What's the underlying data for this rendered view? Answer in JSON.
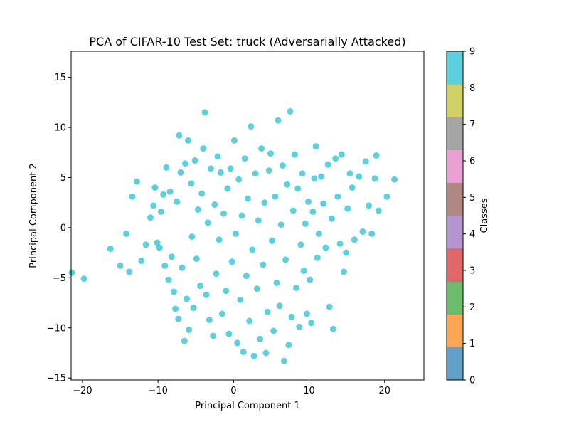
{
  "chart_data": {
    "type": "scatter",
    "title": "PCA of CIFAR-10 Test Set: truck (Adversarially Attacked)",
    "xlabel": "Principal Component 1",
    "ylabel": "Principal Component 2",
    "xlim": [
      -21.5,
      25.2
    ],
    "ylim": [
      -15.2,
      17.6
    ],
    "xticks": [
      -20,
      -10,
      0,
      10,
      20
    ],
    "yticks": [
      -15,
      -10,
      -5,
      0,
      5,
      10,
      15
    ],
    "grid": false,
    "point_color": "#17becf",
    "point_alpha": 0.7,
    "colorbar": {
      "label": "Classes",
      "ticks": [
        "0",
        "1",
        "2",
        "3",
        "4",
        "5",
        "6",
        "7",
        "8",
        "9"
      ],
      "colors": [
        "#1f77b4",
        "#ff7f0e",
        "#2ca02c",
        "#d62728",
        "#9467bd",
        "#8c564b",
        "#e377c2",
        "#7f7f7f",
        "#bcbd22",
        "#17becf"
      ],
      "alpha": 0.7
    },
    "points": [
      [
        -21.4,
        -4.5
      ],
      [
        -19.8,
        -5.1
      ],
      [
        -16.3,
        -2.1
      ],
      [
        -15.0,
        -3.8
      ],
      [
        -14.2,
        -0.6
      ],
      [
        -13.8,
        -4.4
      ],
      [
        -13.4,
        3.1
      ],
      [
        -12.8,
        4.6
      ],
      [
        -12.2,
        -3.3
      ],
      [
        -11.6,
        -1.7
      ],
      [
        -11.0,
        1.0
      ],
      [
        -10.6,
        2.2
      ],
      [
        -10.4,
        4.0
      ],
      [
        -10.1,
        -1.5
      ],
      [
        -9.8,
        -2.0
      ],
      [
        -9.6,
        1.6
      ],
      [
        -9.3,
        3.3
      ],
      [
        -9.1,
        -3.8
      ],
      [
        -8.9,
        6.0
      ],
      [
        -8.6,
        -5.2
      ],
      [
        -8.4,
        3.6
      ],
      [
        -8.2,
        -2.9
      ],
      [
        -7.9,
        -6.4
      ],
      [
        -7.7,
        -8.1
      ],
      [
        -7.5,
        2.6
      ],
      [
        -7.3,
        -9.1
      ],
      [
        -7.2,
        9.2
      ],
      [
        -7.0,
        5.5
      ],
      [
        -6.8,
        -4.0
      ],
      [
        -6.5,
        -11.3
      ],
      [
        -6.4,
        6.4
      ],
      [
        -6.2,
        -7.1
      ],
      [
        -6.0,
        8.7
      ],
      [
        -5.9,
        -10.2
      ],
      [
        -5.6,
        4.4
      ],
      [
        -5.5,
        -0.9
      ],
      [
        -5.3,
        -8.0
      ],
      [
        -5.1,
        6.7
      ],
      [
        -4.9,
        -3.1
      ],
      [
        -4.7,
        1.8
      ],
      [
        -4.4,
        -5.8
      ],
      [
        -4.2,
        3.4
      ],
      [
        -4.0,
        7.9
      ],
      [
        -3.8,
        11.5
      ],
      [
        -3.6,
        -6.7
      ],
      [
        -3.4,
        0.5
      ],
      [
        -3.2,
        -9.2
      ],
      [
        -3.0,
        5.9
      ],
      [
        -2.7,
        -10.8
      ],
      [
        -2.5,
        2.3
      ],
      [
        -2.3,
        -4.6
      ],
      [
        -2.1,
        7.1
      ],
      [
        -1.9,
        -1.2
      ],
      [
        -1.7,
        5.5
      ],
      [
        -1.5,
        -8.6
      ],
      [
        -1.3,
        1.4
      ],
      [
        -1.0,
        -6.3
      ],
      [
        -0.8,
        3.9
      ],
      [
        -0.6,
        -10.6
      ],
      [
        -0.4,
        5.9
      ],
      [
        -0.2,
        -3.4
      ],
      [
        0.1,
        8.7
      ],
      [
        0.3,
        -0.6
      ],
      [
        0.5,
        -11.5
      ],
      [
        0.7,
        4.8
      ],
      [
        0.9,
        -7.2
      ],
      [
        1.1,
        1.2
      ],
      [
        1.3,
        -12.4
      ],
      [
        1.5,
        6.9
      ],
      [
        1.7,
        -4.8
      ],
      [
        1.9,
        2.9
      ],
      [
        2.1,
        -9.3
      ],
      [
        2.3,
        10.1
      ],
      [
        2.5,
        -2.2
      ],
      [
        2.7,
        -12.8
      ],
      [
        2.9,
        5.4
      ],
      [
        3.1,
        -6.1
      ],
      [
        3.3,
        0.7
      ],
      [
        3.5,
        -11.1
      ],
      [
        3.7,
        7.9
      ],
      [
        3.9,
        -3.7
      ],
      [
        4.1,
        2.5
      ],
      [
        4.3,
        -12.5
      ],
      [
        4.5,
        -8.4
      ],
      [
        4.7,
        5.7
      ],
      [
        4.9,
        7.4
      ],
      [
        5.1,
        -1.3
      ],
      [
        5.3,
        -10.3
      ],
      [
        5.5,
        3.1
      ],
      [
        5.7,
        -5.5
      ],
      [
        5.9,
        10.7
      ],
      [
        6.1,
        -7.8
      ],
      [
        6.3,
        0.3
      ],
      [
        6.5,
        6.2
      ],
      [
        6.7,
        -13.3
      ],
      [
        6.9,
        -3.2
      ],
      [
        7.1,
        4.3
      ],
      [
        7.3,
        -11.7
      ],
      [
        7.5,
        11.6
      ],
      [
        7.7,
        -8.9
      ],
      [
        7.9,
        1.7
      ],
      [
        8.1,
        7.3
      ],
      [
        8.3,
        -6.0
      ],
      [
        8.5,
        3.9
      ],
      [
        8.7,
        -9.9
      ],
      [
        8.9,
        -1.7
      ],
      [
        9.1,
        5.4
      ],
      [
        9.3,
        -4.3
      ],
      [
        9.5,
        0.4
      ],
      [
        9.7,
        -8.6
      ],
      [
        9.9,
        2.6
      ],
      [
        10.1,
        -5.2
      ],
      [
        10.3,
        -9.5
      ],
      [
        10.5,
        1.6
      ],
      [
        10.7,
        4.9
      ],
      [
        10.9,
        8.1
      ],
      [
        11.1,
        -3.0
      ],
      [
        11.3,
        -0.6
      ],
      [
        11.6,
        5.1
      ],
      [
        11.9,
        2.4
      ],
      [
        12.2,
        -2.0
      ],
      [
        12.5,
        6.3
      ],
      [
        12.7,
        -7.9
      ],
      [
        13.0,
        0.9
      ],
      [
        13.2,
        -10.1
      ],
      [
        13.5,
        6.9
      ],
      [
        13.8,
        3.1
      ],
      [
        14.1,
        -1.6
      ],
      [
        14.3,
        7.3
      ],
      [
        14.6,
        -4.4
      ],
      [
        14.9,
        -2.5
      ],
      [
        15.1,
        1.9
      ],
      [
        15.4,
        5.4
      ],
      [
        15.7,
        4.0
      ],
      [
        16.0,
        -1.2
      ],
      [
        16.6,
        5.1
      ],
      [
        17.1,
        -0.4
      ],
      [
        17.5,
        6.6
      ],
      [
        17.9,
        2.2
      ],
      [
        18.3,
        -0.6
      ],
      [
        18.7,
        4.9
      ],
      [
        18.9,
        7.2
      ],
      [
        19.2,
        1.7
      ],
      [
        20.3,
        3.1
      ],
      [
        21.3,
        4.8
      ]
    ]
  }
}
